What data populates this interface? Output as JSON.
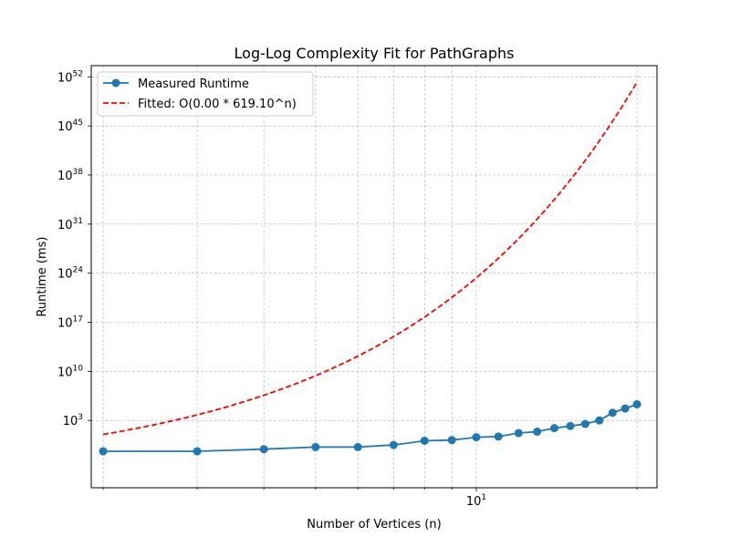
{
  "chart_data": {
    "type": "line",
    "title": "Log-Log Complexity Fit for PathGraphs",
    "xlabel": "Number of Vertices (n)",
    "ylabel": "Runtime (ms)",
    "x_scale": "log",
    "y_scale": "log",
    "xlim": [
      1.9,
      21.8
    ],
    "ylim_exponent": [
      -6.6,
      53.6
    ],
    "grid": true,
    "legend_position": "upper left",
    "x_tick_labels": [
      {
        "value": 10,
        "base": "10",
        "exp": "1"
      }
    ],
    "x_minor_ticks": [
      2,
      3,
      4,
      5,
      6,
      7,
      8,
      9,
      20
    ],
    "y_tick_labels": [
      {
        "value_exp": 3,
        "base": "10",
        "exp": "3"
      },
      {
        "value_exp": 10,
        "base": "10",
        "exp": "10"
      },
      {
        "value_exp": 17,
        "base": "10",
        "exp": "17"
      },
      {
        "value_exp": 24,
        "base": "10",
        "exp": "24"
      },
      {
        "value_exp": 31,
        "base": "10",
        "exp": "31"
      },
      {
        "value_exp": 38,
        "base": "10",
        "exp": "38"
      },
      {
        "value_exp": 45,
        "base": "10",
        "exp": "45"
      },
      {
        "value_exp": 52,
        "base": "10",
        "exp": "52"
      }
    ],
    "series": [
      {
        "name": "Measured Runtime",
        "style": "solid-markers",
        "color": "#1f77b4",
        "x": [
          2,
          3,
          4,
          5,
          6,
          7,
          8,
          9,
          10,
          11,
          12,
          13,
          14,
          15,
          16,
          17,
          18,
          19,
          20
        ],
        "y_exponent": [
          -1.4,
          -1.4,
          -1.1,
          -0.8,
          -0.8,
          -0.5,
          0.1,
          0.2,
          0.6,
          0.7,
          1.2,
          1.4,
          1.9,
          2.2,
          2.5,
          3.0,
          4.1,
          4.7,
          5.3
        ]
      },
      {
        "name": "Fitted: O(0.00 * 619.10^n)",
        "style": "dashed",
        "color": "#ff0000",
        "function": "fit",
        "y_exponent_at_x2": 1.0,
        "growth_per_n": 2.792,
        "x_range": [
          2,
          20
        ]
      }
    ]
  }
}
